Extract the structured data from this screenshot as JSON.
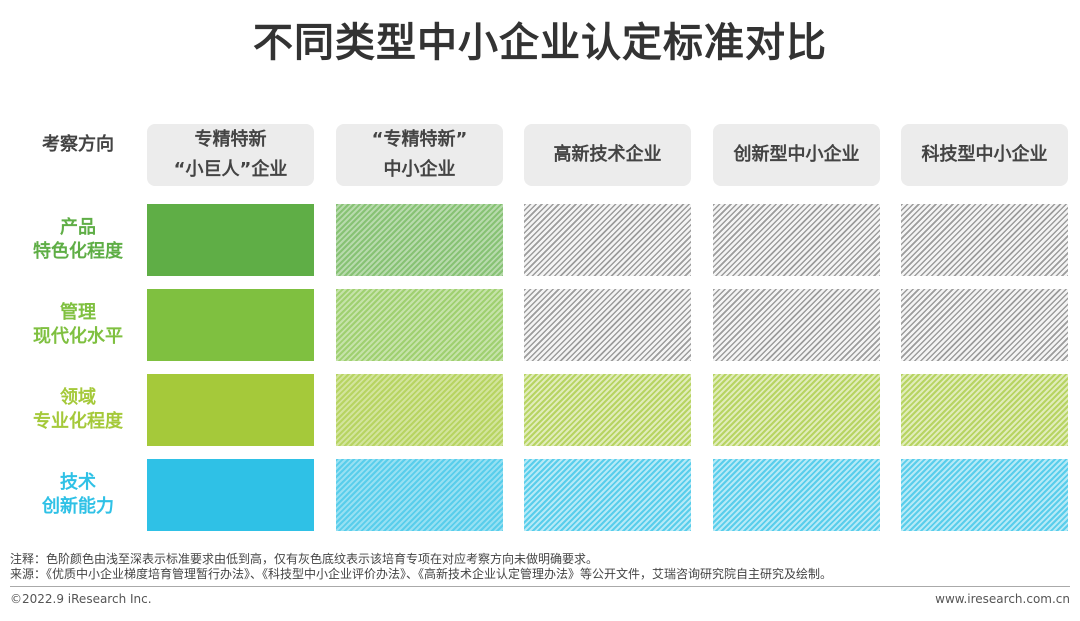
{
  "title": "不同类型中小企业认定标准对比",
  "header_label": "考察方向",
  "columns": [
    "专精特新\n“小巨人”企业",
    "“专精特新”\n中小企业",
    "高新技术企业",
    "创新型中小企业",
    "科技型中小企业"
  ],
  "rows": [
    {
      "label": "产品\n特色化程度",
      "color": "#5fae46",
      "levels": [
        "solid",
        "hatch-color",
        "hatch-gray",
        "hatch-gray",
        "hatch-gray"
      ]
    },
    {
      "label": "管理\n现代化水平",
      "color": "#7fc040",
      "levels": [
        "solid",
        "hatch-color",
        "hatch-gray",
        "hatch-gray",
        "hatch-gray"
      ]
    },
    {
      "label": "领域\n专业化程度",
      "color": "#a5c93a",
      "levels": [
        "solid",
        "hatch-color",
        "hatch-color",
        "hatch-color",
        "hatch-color"
      ]
    },
    {
      "label": "技术\n创新能力",
      "color": "#2fc1e6",
      "levels": [
        "solid",
        "hatch-color",
        "hatch-color",
        "hatch-color",
        "hatch-color"
      ]
    }
  ],
  "notes": [
    "注释：色阶颜色由浅至深表示标准要求由低到高，仅有灰色底纹表示该培育专项在对应考察方向未做明确要求。",
    "来源：《优质中小企业梯度培育管理暂行办法》、《科技型中小企业评价办法》、《高新技术企业认定管理办法》等公开文件，艾瑞咨询研究院自主研究及绘制。"
  ],
  "footer": {
    "left": "©2022.9 iResearch Inc.",
    "right": "www.iresearch.com.cn"
  }
}
